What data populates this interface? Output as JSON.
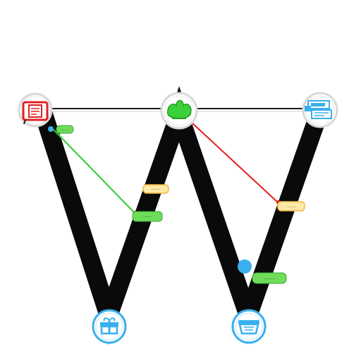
{
  "colors": {
    "background": "#ffffff",
    "zigzag": "#0a0a0a",
    "top_line": "#1a1a1a",
    "green_link": "#2ecc2e",
    "red_link": "#e0201c",
    "blue_accent": "#39b0ee",
    "red_accent": "#e02020",
    "green_accent": "#3cd03c",
    "tag_green_fill": "#6fdc5a",
    "tag_yellow_fill": "#ffe9a8",
    "tag_yellow_stroke": "#f2b640"
  },
  "nodes": [
    {
      "id": "top-left",
      "icon": "red-document-icon",
      "accent": "#e02020"
    },
    {
      "id": "top-middle",
      "icon": "green-leaf-icon",
      "accent": "#3cd03c"
    },
    {
      "id": "top-right",
      "icon": "blue-window-icon",
      "accent": "#39b0ee"
    },
    {
      "id": "bottom-left",
      "icon": "blue-gift-icon",
      "accent": "#39b0ee"
    },
    {
      "id": "bottom-right",
      "icon": "blue-basket-icon",
      "accent": "#39b0ee"
    }
  ],
  "tags": [
    {
      "id": "tag-top-left",
      "style": "green",
      "text": "-------"
    },
    {
      "id": "tag-mid-left-yellow",
      "style": "yellow",
      "text": "-------"
    },
    {
      "id": "tag-mid-left-green",
      "style": "green",
      "text": "-------"
    },
    {
      "id": "tag-mid-right-yellow",
      "style": "yellow",
      "text": "-------"
    },
    {
      "id": "tag-bottom-right-green",
      "style": "green",
      "text": "---------"
    }
  ]
}
